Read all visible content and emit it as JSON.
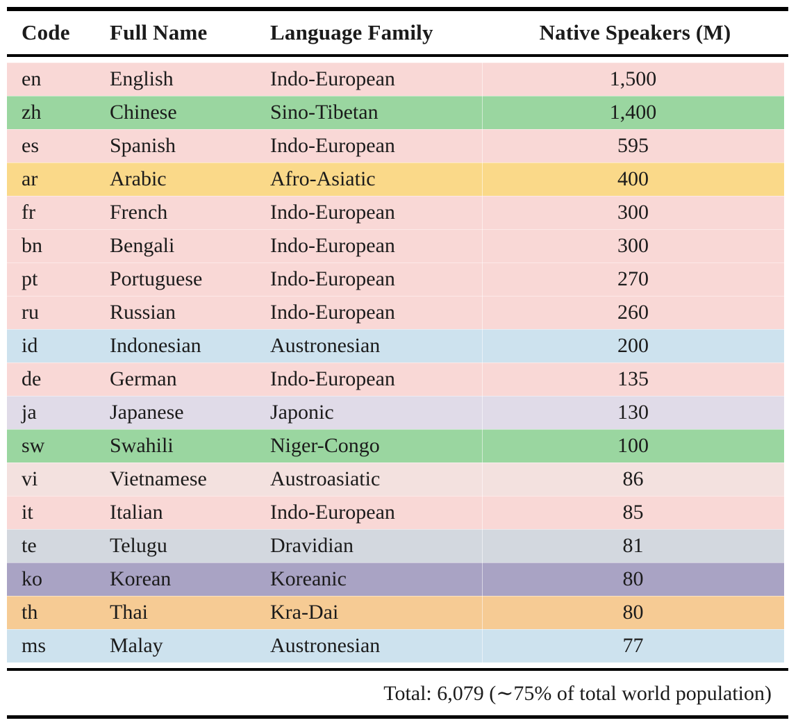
{
  "colors": {
    "rule": "#000000",
    "text": "#1b1b1b",
    "page_background": "#ffffff"
  },
  "table": {
    "columns": [
      "Code",
      "Full Name",
      "Language Family",
      "Native Speakers (M)"
    ],
    "family_colors": {
      "Indo-European": "#f9d8d6",
      "Sino-Tibetan": "#9ad6a0",
      "Afro-Asiatic": "#fad989",
      "Austronesian": "#cde2ee",
      "Japonic": "#e0dbe8",
      "Niger-Congo": "#9ad6a0",
      "Austroasiatic": "#f3e1df",
      "Dravidian": "#d3d8df",
      "Koreanic": "#a9a3c4",
      "Kra-Dai": "#f6cb94"
    },
    "rows": [
      {
        "code": "en",
        "name": "English",
        "family": "Indo-European",
        "speakers": "1,500"
      },
      {
        "code": "zh",
        "name": "Chinese",
        "family": "Sino-Tibetan",
        "speakers": "1,400"
      },
      {
        "code": "es",
        "name": "Spanish",
        "family": "Indo-European",
        "speakers": "595"
      },
      {
        "code": "ar",
        "name": "Arabic",
        "family": "Afro-Asiatic",
        "speakers": "400"
      },
      {
        "code": "fr",
        "name": "French",
        "family": "Indo-European",
        "speakers": "300"
      },
      {
        "code": "bn",
        "name": "Bengali",
        "family": "Indo-European",
        "speakers": "300"
      },
      {
        "code": "pt",
        "name": "Portuguese",
        "family": "Indo-European",
        "speakers": "270"
      },
      {
        "code": "ru",
        "name": "Russian",
        "family": "Indo-European",
        "speakers": "260"
      },
      {
        "code": "id",
        "name": "Indonesian",
        "family": "Austronesian",
        "speakers": "200"
      },
      {
        "code": "de",
        "name": "German",
        "family": "Indo-European",
        "speakers": "135"
      },
      {
        "code": "ja",
        "name": "Japanese",
        "family": "Japonic",
        "speakers": "130"
      },
      {
        "code": "sw",
        "name": "Swahili",
        "family": "Niger-Congo",
        "speakers": "100"
      },
      {
        "code": "vi",
        "name": "Vietnamese",
        "family": "Austroasiatic",
        "speakers": "86"
      },
      {
        "code": "it",
        "name": "Italian",
        "family": "Indo-European",
        "speakers": "85"
      },
      {
        "code": "te",
        "name": "Telugu",
        "family": "Dravidian",
        "speakers": "81"
      },
      {
        "code": "ko",
        "name": "Korean",
        "family": "Koreanic",
        "speakers": "80"
      },
      {
        "code": "th",
        "name": "Thai",
        "family": "Kra-Dai",
        "speakers": "80"
      },
      {
        "code": "ms",
        "name": "Malay",
        "family": "Austronesian",
        "speakers": "77"
      }
    ],
    "total_label": "Total: 6,079 (∼75% of total world population)"
  }
}
